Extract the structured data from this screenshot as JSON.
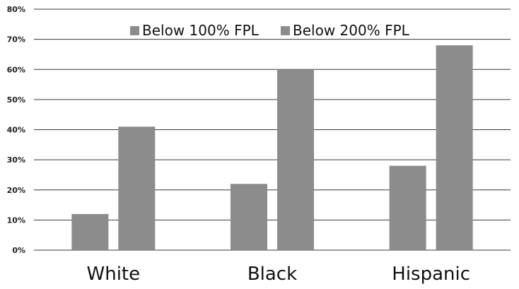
{
  "chart_data": {
    "type": "bar",
    "categories": [
      "White",
      "Black",
      "Hispanic"
    ],
    "series": [
      {
        "name": "Below 100% FPL",
        "values": [
          12,
          22,
          28
        ],
        "color": "#8c8c8c"
      },
      {
        "name": "Below 200% FPL",
        "values": [
          41,
          60,
          68
        ],
        "color": "#8c8c8c"
      }
    ],
    "ylim": [
      0,
      80
    ],
    "yticks": [
      0,
      10,
      20,
      30,
      40,
      50,
      60,
      70,
      80
    ],
    "ytick_labels": [
      "0%",
      "10%",
      "20%",
      "30%",
      "40%",
      "50%",
      "60%",
      "70%",
      "80%"
    ],
    "grid": true,
    "legend_position": "top-center"
  }
}
